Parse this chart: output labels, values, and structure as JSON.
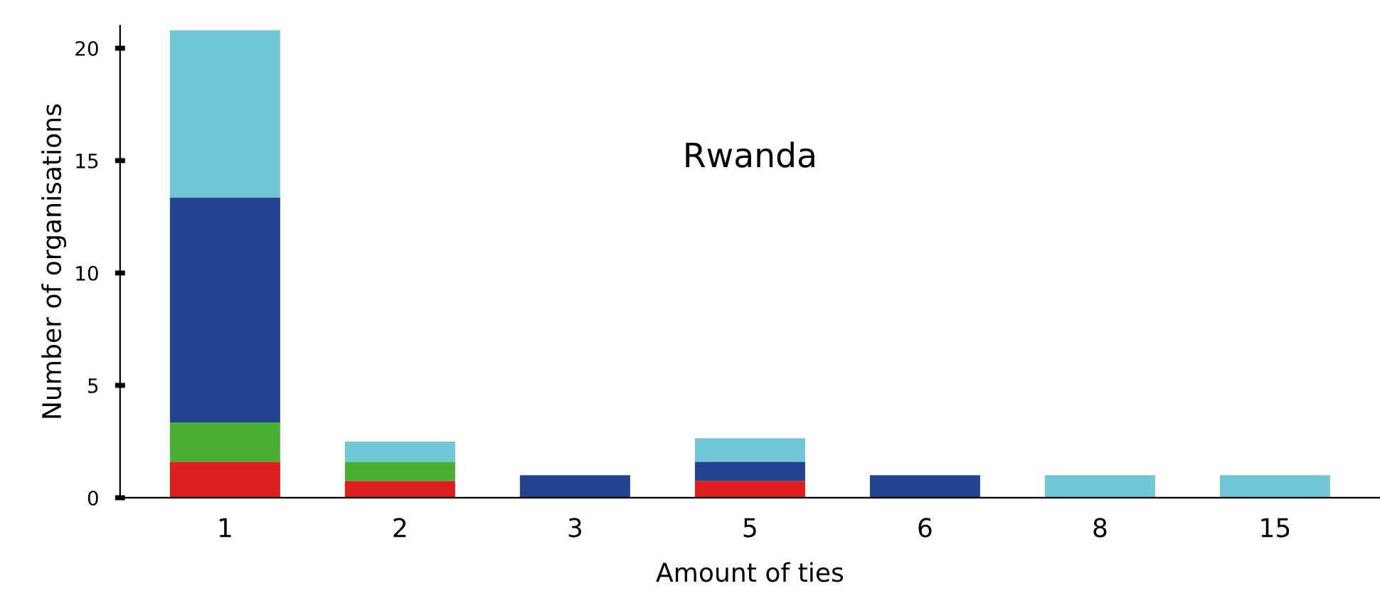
{
  "chart_data": {
    "type": "bar",
    "title": "Rwanda",
    "xlabel": "Amount of ties",
    "ylabel": "Number of organisations",
    "categories": [
      "1",
      "2",
      "3",
      "5",
      "6",
      "8",
      "15"
    ],
    "stacked": true,
    "series": [
      {
        "color": "#dc1e1e",
        "values": [
          1.6,
          0.75,
          0,
          0.75,
          0,
          0,
          0
        ]
      },
      {
        "color": "#4caf35",
        "values": [
          1.75,
          0.85,
          0,
          0,
          0,
          0,
          0
        ]
      },
      {
        "color": "#234391",
        "values": [
          10.0,
          0,
          1.0,
          0.85,
          1.0,
          0,
          0
        ]
      },
      {
        "color": "#72c7d6",
        "values": [
          7.45,
          0.9,
          0,
          1.05,
          0,
          1.0,
          1.0
        ]
      }
    ],
    "ylim": [
      0,
      21
    ],
    "yticks": [
      0,
      5,
      10,
      15,
      20
    ],
    "grid": false,
    "legend": false
  }
}
